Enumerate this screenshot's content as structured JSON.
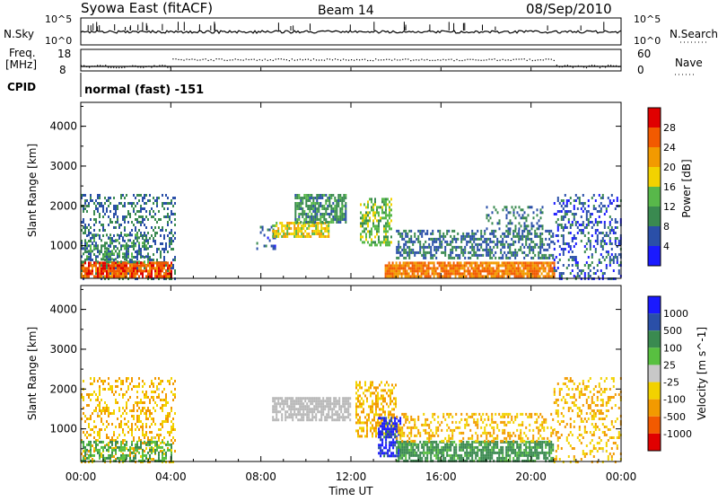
{
  "header": {
    "station": "Syowa East (fitACF)",
    "beam": "Beam 14",
    "date": "08/Sep/2010"
  },
  "nsky_panel": {
    "left_label": "N.Sky",
    "left_ticks": [
      "10^5",
      "10^0"
    ],
    "right_label": "N.Search",
    "right_ticks": [
      "10^5",
      "10^0"
    ]
  },
  "freq_panel": {
    "left_label_1": "Freq.",
    "left_label_2": "[MHz]",
    "left_ticks": [
      "18",
      "8"
    ],
    "right_label": "Nave",
    "right_ticks": [
      "60",
      "0"
    ]
  },
  "cpid_panel": {
    "label": "CPID",
    "text": "normal (fast) -151"
  },
  "colors": {
    "power_scale": [
      "#1a1aff",
      "#2a4fa8",
      "#3a8a50",
      "#58b84a",
      "#f2d200",
      "#f29a00",
      "#f25a00",
      "#e00000"
    ],
    "velocity_scale": [
      "#1a1aff",
      "#2a4fa8",
      "#3a8a50",
      "#58c040",
      "#c8c8c8",
      "#f2d200",
      "#f29a00",
      "#f25a00",
      "#e00000"
    ],
    "ground_scatter": "#b8b8b8"
  },
  "chart_data": [
    {
      "type": "heatmap",
      "panel": "power",
      "ylabel": "Slant Range [km]",
      "ylim": [
        180,
        4600
      ],
      "y_ticks": [
        1000,
        2000,
        3000,
        4000
      ],
      "x_ticks": [
        "00:00",
        "04:00",
        "08:00",
        "12:00",
        "16:00",
        "20:00",
        "00:00"
      ],
      "x_range_hours": [
        0,
        24
      ],
      "colorbar_label": "Power [dB]",
      "colorbar_ticks": [
        "4",
        "8",
        "12",
        "16",
        "20",
        "24",
        "28"
      ],
      "colorbar_range": [
        0,
        32
      ],
      "regions": [
        {
          "t": [
            0,
            4.2
          ],
          "r": [
            200,
            2300
          ],
          "value": 8,
          "density": 0.35
        },
        {
          "t": [
            0,
            4.0
          ],
          "r": [
            200,
            600
          ],
          "value": 26,
          "density": 0.85
        },
        {
          "t": [
            0,
            3.0
          ],
          "r": [
            600,
            1300
          ],
          "value": 10,
          "density": 0.4
        },
        {
          "t": [
            7.8,
            8.6
          ],
          "r": [
            900,
            1500
          ],
          "value": 6,
          "density": 0.3
        },
        {
          "t": [
            8.5,
            11.0
          ],
          "r": [
            1200,
            1600
          ],
          "value": 18,
          "density": 0.7
        },
        {
          "t": [
            9.5,
            11.8
          ],
          "r": [
            1600,
            2300
          ],
          "value": 10,
          "density": 0.7
        },
        {
          "t": [
            12.4,
            13.8
          ],
          "r": [
            1000,
            2200
          ],
          "value": 14,
          "density": 0.55
        },
        {
          "t": [
            13.5,
            21.0
          ],
          "r": [
            200,
            600
          ],
          "value": 24,
          "density": 0.85
        },
        {
          "t": [
            14.0,
            21.0
          ],
          "r": [
            700,
            1400
          ],
          "value": 8,
          "density": 0.5
        },
        {
          "t": [
            18.0,
            20.5
          ],
          "r": [
            1400,
            2000
          ],
          "value": 8,
          "density": 0.3
        },
        {
          "t": [
            21.0,
            24.0
          ],
          "r": [
            200,
            2300
          ],
          "value": 6,
          "density": 0.3
        }
      ]
    },
    {
      "type": "heatmap",
      "panel": "velocity",
      "ylabel": "Slant Range [km]",
      "ylim": [
        180,
        4600
      ],
      "y_ticks": [
        1000,
        2000,
        3000,
        4000
      ],
      "x_ticks": [
        "00:00",
        "04:00",
        "08:00",
        "12:00",
        "16:00",
        "20:00",
        "00:00"
      ],
      "x_range_hours": [
        0,
        24
      ],
      "xlabel": "Time UT",
      "colorbar_label": "Velocity [m s^-1]",
      "colorbar_ticks": [
        "1000",
        "500",
        "100",
        "25",
        "-25",
        "-100",
        "-500",
        "-1000"
      ],
      "regions": [
        {
          "t": [
            0,
            4.2
          ],
          "r": [
            200,
            2300
          ],
          "value": -100,
          "density": 0.3
        },
        {
          "t": [
            0,
            4.0
          ],
          "r": [
            200,
            700
          ],
          "value": 100,
          "density": 0.45
        },
        {
          "t": [
            8.5,
            12.0
          ],
          "r": [
            1200,
            1800
          ],
          "value": 0,
          "density": 0.75,
          "ground": true
        },
        {
          "t": [
            12.2,
            14.0
          ],
          "r": [
            800,
            2200
          ],
          "value": -100,
          "density": 0.45
        },
        {
          "t": [
            13.2,
            14.2
          ],
          "r": [
            300,
            1300
          ],
          "value": 1000,
          "density": 0.6
        },
        {
          "t": [
            14.0,
            21.0
          ],
          "r": [
            200,
            700
          ],
          "value": 150,
          "density": 0.75
        },
        {
          "t": [
            14.0,
            21.0
          ],
          "r": [
            700,
            1400
          ],
          "value": -100,
          "density": 0.3
        },
        {
          "t": [
            21.0,
            24.0
          ],
          "r": [
            200,
            2300
          ],
          "value": -100,
          "density": 0.25
        }
      ]
    }
  ],
  "footer": {
    "xlabel": "Time UT"
  }
}
